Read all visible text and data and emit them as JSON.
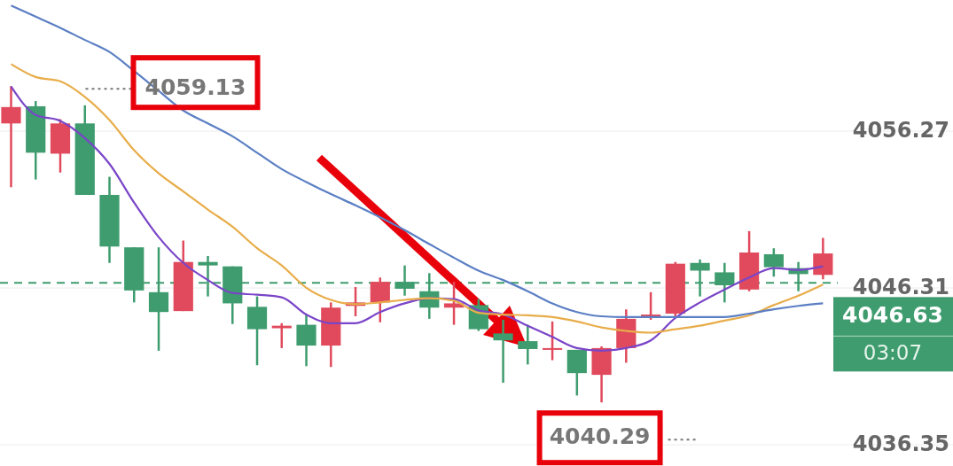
{
  "chart_data": {
    "type": "candlestick",
    "categories": [
      null,
      null,
      null,
      null,
      null,
      null,
      null,
      null,
      null,
      null,
      null,
      null,
      null,
      null,
      null,
      null,
      null,
      null,
      null,
      null,
      null,
      null,
      null,
      null,
      null,
      null,
      null,
      null,
      null,
      null,
      null,
      null,
      null,
      null
    ],
    "ohlc": [
      [
        4056.76,
        4059.13,
        4052.71,
        4057.8
      ],
      [
        4057.85,
        4058.18,
        4053.2,
        4054.9
      ],
      [
        4054.84,
        4057.03,
        4053.64,
        4056.76
      ],
      [
        4056.76,
        4057.91,
        4052.22,
        4052.22
      ],
      [
        4052.22,
        4053.37,
        4047.9,
        4048.94
      ],
      [
        4048.89,
        4048.89,
        4045.39,
        4046.15
      ],
      [
        4046.04,
        4048.89,
        4042.32,
        4044.78
      ],
      [
        4044.84,
        4049.32,
        4044.84,
        4047.96
      ],
      [
        4047.96,
        4048.34,
        4045.77,
        4047.74
      ],
      [
        4047.68,
        4047.68,
        4044.02,
        4045.33
      ],
      [
        4045.11,
        4045.77,
        4041.4,
        4043.69
      ],
      [
        4043.75,
        4044.07,
        4042.49,
        4043.91
      ],
      [
        4043.97,
        4044.62,
        4041.34,
        4042.65
      ],
      [
        4042.65,
        4045.39,
        4041.29,
        4045.06
      ],
      [
        4045.17,
        4046.37,
        4044.51,
        4045.39
      ],
      [
        4045.39,
        4046.97,
        4044.13,
        4046.7
      ],
      [
        4046.7,
        4047.74,
        4045.82,
        4046.26
      ],
      [
        4046.1,
        4047.25,
        4044.35,
        4045.06
      ],
      [
        4045.06,
        4046.7,
        4043.97,
        4045.33
      ],
      [
        4045.22,
        4045.61,
        4043.58,
        4043.69
      ],
      [
        4043.42,
        4044.29,
        4040.29,
        4042.98
      ],
      [
        4042.93,
        4043.97,
        4041.45,
        4042.43
      ],
      [
        4042.38,
        4044.18,
        4041.72,
        4042.49
      ],
      [
        4042.38,
        4042.38,
        4039.48,
        4040.9
      ],
      [
        4040.79,
        4042.6,
        4039.04,
        4042.49
      ],
      [
        4042.49,
        4044.95,
        4041.56,
        4044.35
      ],
      [
        4044.51,
        4046.04,
        4044.29,
        4044.62
      ],
      [
        4044.68,
        4047.96,
        4044.46,
        4047.85
      ],
      [
        4047.9,
        4048.12,
        4045.77,
        4047.41
      ],
      [
        4047.3,
        4047.9,
        4045.39,
        4046.48
      ],
      [
        4046.21,
        4049.92,
        4046.1,
        4048.56
      ],
      [
        4048.45,
        4048.83,
        4047.03,
        4047.63
      ],
      [
        4047.57,
        4047.96,
        4046.1,
        4047.19
      ],
      [
        4047.14,
        4049.49,
        4046.86,
        4048.5
      ]
    ],
    "colors": [
      "#e04a5c",
      "#3e9c6e",
      "#e04a5c",
      "#3e9c6e",
      "#3e9c6e",
      "#3e9c6e",
      "#3e9c6e",
      "#e04a5c",
      "#3e9c6e",
      "#3e9c6e",
      "#3e9c6e",
      "#e04a5c",
      "#3e9c6e",
      "#e04a5c",
      "#e04a5c",
      "#e04a5c",
      "#3e9c6e",
      "#3e9c6e",
      "#e04a5c",
      "#3e9c6e",
      "#3e9c6e",
      "#3e9c6e",
      "#e04a5c",
      "#3e9c6e",
      "#e04a5c",
      "#e04a5c",
      "#e04a5c",
      "#e04a5c",
      "#3e9c6e",
      "#3e9c6e",
      "#e04a5c",
      "#3e9c6e",
      "#3e9c6e",
      "#e04a5c"
    ],
    "series": [
      {
        "type": "line",
        "color": "#7a45c8",
        "values": [
          4059.11,
          4057.3,
          4056.92,
          4055.83,
          4054.19,
          4051.73,
          4049.54,
          4047.9,
          4046.81,
          4045.99,
          4045.88,
          4045.71,
          4044.62,
          4044.07,
          4044.07,
          4044.78,
          4045.33,
          4045.66,
          4045.6,
          4044.89,
          4044.62,
          4043.91,
          4043.2,
          4042.49,
          4042.32,
          4042.49,
          4042.98,
          4044.4,
          4045.39,
          4046.21,
          4046.97,
          4047.57,
          4047.46,
          4047.68
        ]
      },
      {
        "type": "line",
        "color": "#e8ad4a",
        "values": [
          4060.53,
          4059.71,
          4059.44,
          4058.45,
          4056.98,
          4055.06,
          4053.59,
          4052.44,
          4051.29,
          4050.2,
          4048.83,
          4047.74,
          4046.32,
          4045.55,
          4045.28,
          4045.39,
          4045.55,
          4045.66,
          4045.5,
          4044.73,
          4044.62,
          4044.57,
          4044.46,
          4044.18,
          4043.8,
          4043.58,
          4043.47,
          4043.69,
          4043.91,
          4044.24,
          4044.57,
          4045.22,
          4045.82,
          4046.53
        ]
      },
      {
        "type": "line",
        "color": "#5b7fc4",
        "values": [
          4064.25,
          4063.54,
          4062.83,
          4062.06,
          4061.3,
          4060.09,
          4058.83,
          4057.58,
          4056.76,
          4055.94,
          4054.9,
          4053.86,
          4053.04,
          4052.27,
          4051.56,
          4050.8,
          4049.98,
          4049.1,
          4048.23,
          4047.41,
          4046.81,
          4046.1,
          4045.33,
          4044.78,
          4044.51,
          4044.46,
          4044.46,
          4044.46,
          4044.46,
          4044.46,
          4044.68,
          4044.95,
          4045.17,
          4045.33
        ]
      }
    ],
    "ylim": [
      4035.0,
      4064.6
    ],
    "yticks": [
      4056.27,
      4046.31,
      4036.35
    ],
    "grid": "y",
    "tick_labels": "y",
    "ref_lines": [
      {
        "axis": "y",
        "value": 4046.63,
        "label": "4046.63",
        "color": "#3e9c6e",
        "line_style": "dashed"
      }
    ],
    "annotations": [
      "4059.13",
      "4040.29",
      "03:07"
    ]
  }
}
